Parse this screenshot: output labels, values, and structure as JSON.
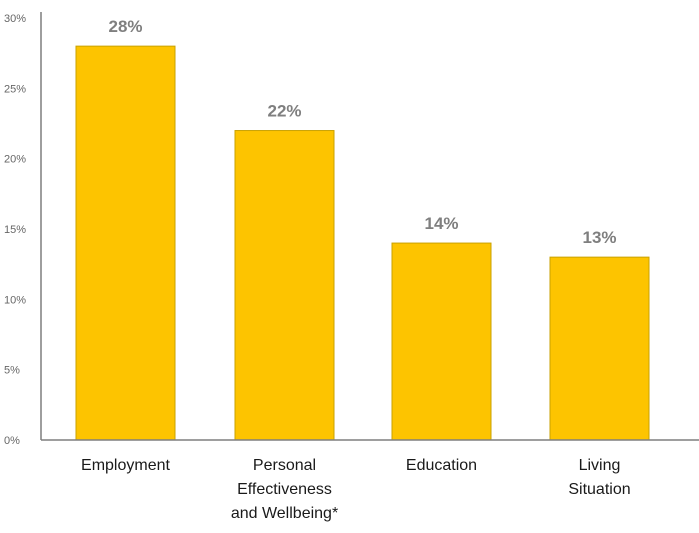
{
  "chart_data": {
    "type": "bar",
    "categories": [
      [
        "Employment"
      ],
      [
        "Personal",
        "Effectiveness",
        "and Wellbeing*"
      ],
      [
        "Education"
      ],
      [
        "Living",
        "Situation"
      ]
    ],
    "values": [
      28,
      22,
      14,
      13
    ],
    "data_labels": [
      "28%",
      "22%",
      "14%",
      "13%"
    ],
    "y_ticks": [
      0,
      5,
      10,
      15,
      20,
      25,
      30
    ],
    "y_tick_labels": [
      "0%",
      "5%",
      "10%",
      "15%",
      "20%",
      "25%",
      "30%"
    ],
    "ylim": [
      0,
      30
    ],
    "grid": false,
    "legend": "none",
    "colors": {
      "bar_fill": "#FDC400",
      "bar_stroke": "#C9A200",
      "axis": "#7f7f7f",
      "data_label": "#7f7f7f",
      "tick_label": "#666666",
      "category_label": "#1a1a1a"
    }
  }
}
